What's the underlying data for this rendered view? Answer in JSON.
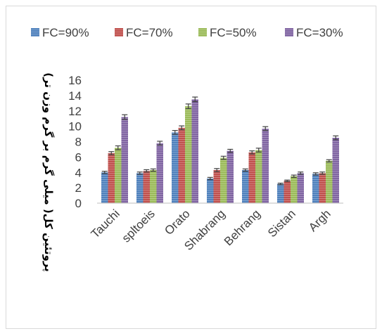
{
  "chart_data": {
    "type": "bar",
    "title": "",
    "xlabel": "",
    "ylabel": "پروتئین کل( میلی گرم بر گرم وزن تر)",
    "ylim": [
      0,
      16
    ],
    "yticks": [
      0,
      2,
      4,
      6,
      8,
      10,
      12,
      14,
      16
    ],
    "grid": false,
    "error_bars": true,
    "legend_position": "top",
    "categories": [
      "Tauchi",
      "spltoeis",
      "Orato",
      "Shabrang",
      "Behrang",
      "Sistan",
      "Argh"
    ],
    "series": [
      {
        "name": "FC=90%",
        "color": "#4f81bd",
        "values": [
          4.0,
          3.9,
          9.2,
          3.2,
          4.3,
          2.5,
          3.8
        ],
        "errors": [
          0.15,
          0.15,
          0.25,
          0.15,
          0.15,
          0.1,
          0.15
        ]
      },
      {
        "name": "FC=70%",
        "color": "#c0504d",
        "values": [
          6.5,
          4.2,
          9.8,
          4.3,
          6.6,
          2.9,
          3.9
        ],
        "errors": [
          0.2,
          0.15,
          0.25,
          0.2,
          0.2,
          0.1,
          0.15
        ]
      },
      {
        "name": "FC=50%",
        "color": "#9bbb59",
        "values": [
          7.2,
          4.3,
          12.6,
          5.9,
          6.9,
          3.5,
          5.5
        ],
        "errors": [
          0.25,
          0.15,
          0.3,
          0.2,
          0.25,
          0.15,
          0.15
        ]
      },
      {
        "name": "FC=30%",
        "color": "#8064a2",
        "values": [
          11.2,
          7.8,
          13.5,
          6.8,
          9.7,
          3.9,
          8.5
        ],
        "errors": [
          0.3,
          0.25,
          0.3,
          0.2,
          0.25,
          0.15,
          0.25
        ]
      }
    ]
  }
}
